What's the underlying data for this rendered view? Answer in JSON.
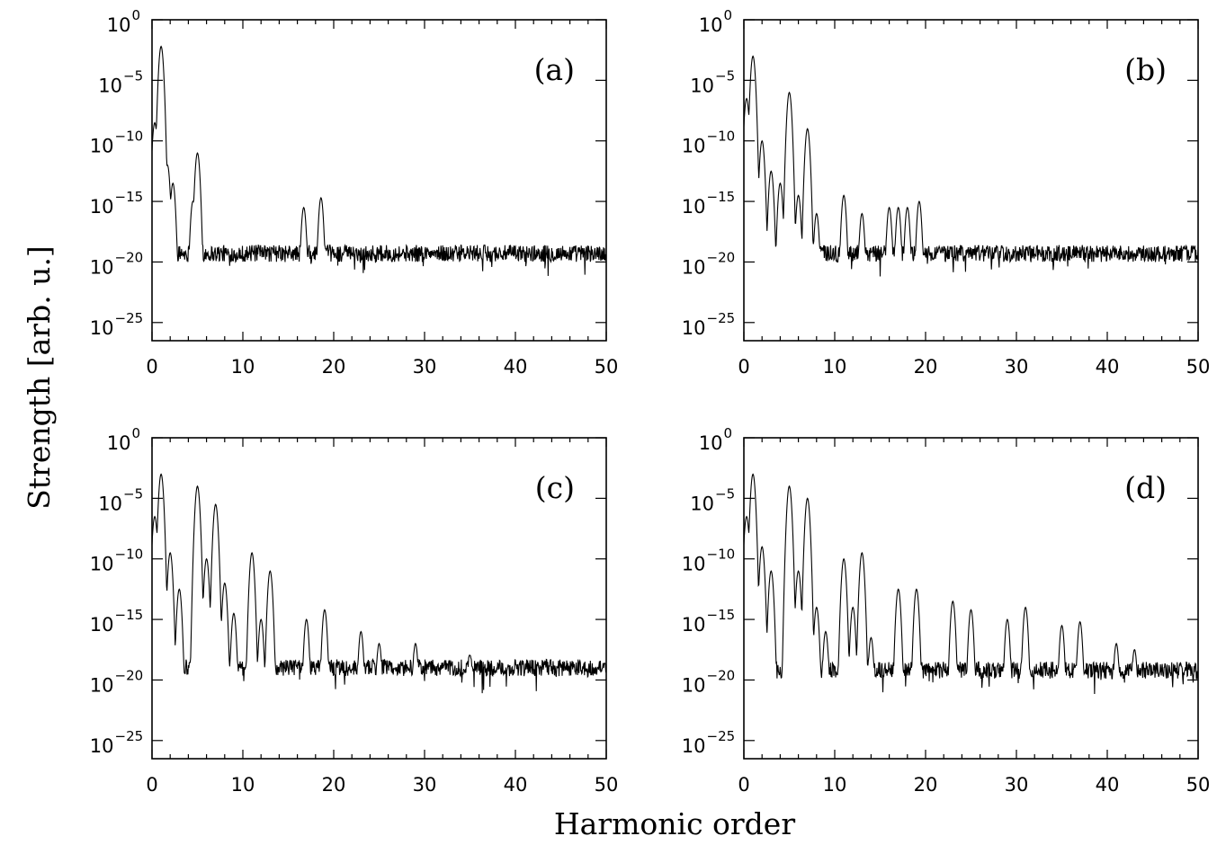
{
  "figure": {
    "xlabel": "Harmonic order",
    "ylabel": "Strength [arb. u.]"
  },
  "chart_data": [
    {
      "type": "line",
      "panel_label": "(a)",
      "y_scale": "log",
      "xlim": [
        0,
        50
      ],
      "ylim_exponent": [
        -26.5,
        0
      ],
      "x_ticks": [
        "0",
        "10",
        "20",
        "30",
        "40",
        "50"
      ],
      "y_tick_exponents": [
        "0",
        "−5",
        "−10",
        "−15",
        "−20",
        "−25"
      ],
      "noise_floor_exp": -19.3,
      "peaks": [
        {
          "x": 0.3,
          "log10_y": -8.5
        },
        {
          "x": 1.0,
          "log10_y": -2.2
        },
        {
          "x": 1.7,
          "log10_y": -12.0
        },
        {
          "x": 2.3,
          "log10_y": -13.5
        },
        {
          "x": 4.5,
          "log10_y": -15.0
        },
        {
          "x": 5.0,
          "log10_y": -11.0
        },
        {
          "x": 16.7,
          "log10_y": -15.5
        },
        {
          "x": 18.6,
          "log10_y": -14.7
        }
      ]
    },
    {
      "type": "line",
      "panel_label": "(b)",
      "y_scale": "log",
      "xlim": [
        0,
        50
      ],
      "ylim_exponent": [
        -26.5,
        0
      ],
      "x_ticks": [
        "0",
        "10",
        "20",
        "30",
        "40",
        "50"
      ],
      "y_tick_exponents": [
        "0",
        "−5",
        "−10",
        "−15",
        "−20",
        "−25"
      ],
      "noise_floor_exp": -19.3,
      "peaks": [
        {
          "x": 0.3,
          "log10_y": -6.5
        },
        {
          "x": 1.0,
          "log10_y": -3.0
        },
        {
          "x": 2.0,
          "log10_y": -10.0
        },
        {
          "x": 3.0,
          "log10_y": -12.5
        },
        {
          "x": 4.0,
          "log10_y": -13.5
        },
        {
          "x": 5.0,
          "log10_y": -6.0
        },
        {
          "x": 6.0,
          "log10_y": -14.5
        },
        {
          "x": 7.0,
          "log10_y": -9.0
        },
        {
          "x": 8.0,
          "log10_y": -16.0
        },
        {
          "x": 11.0,
          "log10_y": -14.5
        },
        {
          "x": 13.0,
          "log10_y": -16.0
        },
        {
          "x": 16.0,
          "log10_y": -15.5
        },
        {
          "x": 17.0,
          "log10_y": -15.5
        },
        {
          "x": 18.0,
          "log10_y": -15.5
        },
        {
          "x": 19.3,
          "log10_y": -15.0
        },
        {
          "x": 21.5,
          "log10_y": -18.8
        }
      ]
    },
    {
      "type": "line",
      "panel_label": "(c)",
      "y_scale": "log",
      "xlim": [
        0,
        50
      ],
      "ylim_exponent": [
        -26.5,
        0
      ],
      "x_ticks": [
        "0",
        "10",
        "20",
        "30",
        "40",
        "50"
      ],
      "y_tick_exponents": [
        "0",
        "−5",
        "−10",
        "−15",
        "−20",
        "−25"
      ],
      "noise_floor_exp": -19.0,
      "peaks": [
        {
          "x": 0.3,
          "log10_y": -6.5
        },
        {
          "x": 1.0,
          "log10_y": -3.0
        },
        {
          "x": 2.0,
          "log10_y": -9.5
        },
        {
          "x": 3.0,
          "log10_y": -12.5
        },
        {
          "x": 5.0,
          "log10_y": -4.0
        },
        {
          "x": 6.0,
          "log10_y": -10.0
        },
        {
          "x": 7.0,
          "log10_y": -5.5
        },
        {
          "x": 8.0,
          "log10_y": -12.0
        },
        {
          "x": 9.0,
          "log10_y": -14.5
        },
        {
          "x": 11.0,
          "log10_y": -9.5
        },
        {
          "x": 12.0,
          "log10_y": -15.0
        },
        {
          "x": 13.0,
          "log10_y": -11.0
        },
        {
          "x": 17.0,
          "log10_y": -15.0
        },
        {
          "x": 19.0,
          "log10_y": -14.2
        },
        {
          "x": 23.0,
          "log10_y": -16.0
        },
        {
          "x": 25.0,
          "log10_y": -17.0
        },
        {
          "x": 29.0,
          "log10_y": -17.0
        },
        {
          "x": 35.0,
          "log10_y": -18.0
        }
      ]
    },
    {
      "type": "line",
      "panel_label": "(d)",
      "y_scale": "log",
      "xlim": [
        0,
        50
      ],
      "ylim_exponent": [
        -26.5,
        0
      ],
      "x_ticks": [
        "0",
        "10",
        "20",
        "30",
        "40",
        "50"
      ],
      "y_tick_exponents": [
        "0",
        "−5",
        "−10",
        "−15",
        "−20",
        "−25"
      ],
      "noise_floor_exp": -19.2,
      "peaks": [
        {
          "x": 0.3,
          "log10_y": -6.5
        },
        {
          "x": 1.0,
          "log10_y": -3.0
        },
        {
          "x": 2.0,
          "log10_y": -9.0
        },
        {
          "x": 3.0,
          "log10_y": -11.0
        },
        {
          "x": 5.0,
          "log10_y": -4.0
        },
        {
          "x": 6.0,
          "log10_y": -11.0
        },
        {
          "x": 7.0,
          "log10_y": -5.0
        },
        {
          "x": 8.0,
          "log10_y": -14.0
        },
        {
          "x": 9.0,
          "log10_y": -16.0
        },
        {
          "x": 11.0,
          "log10_y": -10.0
        },
        {
          "x": 12.0,
          "log10_y": -14.0
        },
        {
          "x": 13.0,
          "log10_y": -9.5
        },
        {
          "x": 14.0,
          "log10_y": -16.5
        },
        {
          "x": 17.0,
          "log10_y": -12.5
        },
        {
          "x": 19.0,
          "log10_y": -12.5
        },
        {
          "x": 23.0,
          "log10_y": -13.5
        },
        {
          "x": 25.0,
          "log10_y": -14.2
        },
        {
          "x": 29.0,
          "log10_y": -15.0
        },
        {
          "x": 31.0,
          "log10_y": -14.0
        },
        {
          "x": 35.0,
          "log10_y": -15.5
        },
        {
          "x": 37.0,
          "log10_y": -15.2
        },
        {
          "x": 41.0,
          "log10_y": -17.0
        },
        {
          "x": 43.0,
          "log10_y": -17.5
        }
      ]
    }
  ]
}
